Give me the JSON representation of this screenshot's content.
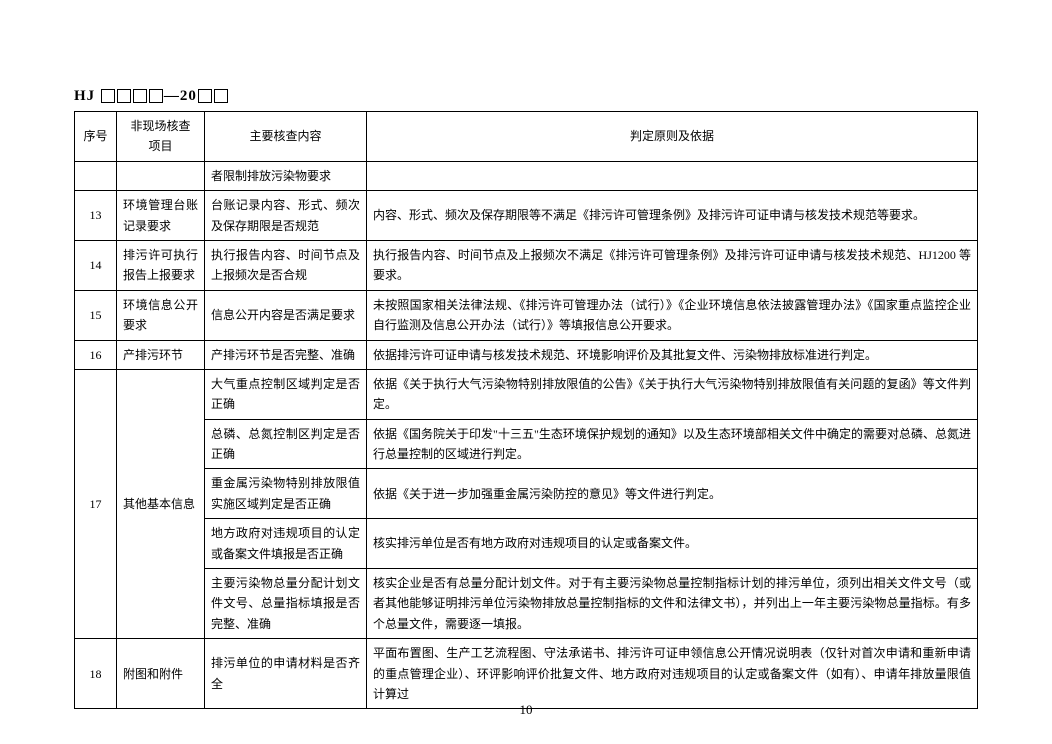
{
  "header_prefix": "HJ",
  "header_mid": "—20",
  "page_number": "10",
  "columns": {
    "h1": "序号",
    "h2": "非现场核查\n项目",
    "h3": "主要核查内容",
    "h4": "判定原则及依据"
  },
  "rows": [
    {
      "no": "",
      "item": "",
      "content": "者限制排放污染物要求",
      "criteria": ""
    },
    {
      "no": "13",
      "item": "环境管理台账记录要求",
      "content": "台账记录内容、形式、频次及保存期限是否规范",
      "criteria": "内容、形式、频次及保存期限等不满足《排污许可管理条例》及排污许可证申请与核发技术规范等要求。"
    },
    {
      "no": "14",
      "item": "排污许可执行报告上报要求",
      "content": "执行报告内容、时间节点及上报频次是否合规",
      "criteria": "执行报告内容、时间节点及上报频次不满足《排污许可管理条例》及排污许可证申请与核发技术规范、HJ1200 等要求。"
    },
    {
      "no": "15",
      "item": "环境信息公开要求",
      "content": "信息公开内容是否满足要求",
      "criteria": "未按照国家相关法律法规、《排污许可管理办法（试行）》《企业环境信息依法披露管理办法》《国家重点监控企业自行监测及信息公开办法（试行）》等填报信息公开要求。"
    },
    {
      "no": "16",
      "item": "产排污环节",
      "content": "产排污环节是否完整、准确",
      "criteria": "依据排污许可证申请与核发技术规范、环境影响评价及其批复文件、污染物排放标准进行判定。"
    },
    {
      "no": "17",
      "item": "其他基本信息",
      "sub": [
        {
          "content": "大气重点控制区域判定是否正确",
          "criteria": "依据《关于执行大气污染物特别排放限值的公告》《关于执行大气污染物特别排放限值有关问题的复函》等文件判定。"
        },
        {
          "content": "总磷、总氮控制区判定是否正确",
          "criteria": "依据《国务院关于印发\"十三五\"生态环境保护规划的通知》以及生态环境部相关文件中确定的需要对总磷、总氮进行总量控制的区域进行判定。"
        },
        {
          "content": "重金属污染物特别排放限值实施区域判定是否正确",
          "criteria": "依据《关于进一步加强重金属污染防控的意见》等文件进行判定。"
        },
        {
          "content": "地方政府对违规项目的认定或备案文件填报是否正确",
          "criteria": "核实排污单位是否有地方政府对违规项目的认定或备案文件。"
        },
        {
          "content": "主要污染物总量分配计划文件文号、总量指标填报是否完整、准确",
          "criteria": "核实企业是否有总量分配计划文件。对于有主要污染物总量控制指标计划的排污单位，须列出相关文件文号（或者其他能够证明排污单位污染物排放总量控制指标的文件和法律文书），并列出上一年主要污染物总量指标。有多个总量文件，需要逐一填报。"
        }
      ]
    },
    {
      "no": "18",
      "item": "附图和附件",
      "content": "排污单位的申请材料是否齐全",
      "criteria": "平面布置图、生产工艺流程图、守法承诺书、排污许可证申领信息公开情况说明表（仅针对首次申请和重新申请的重点管理企业）、环评影响评价批复文件、地方政府对违规项目的认定或备案文件（如有）、申请年排放量限值计算过"
    }
  ]
}
